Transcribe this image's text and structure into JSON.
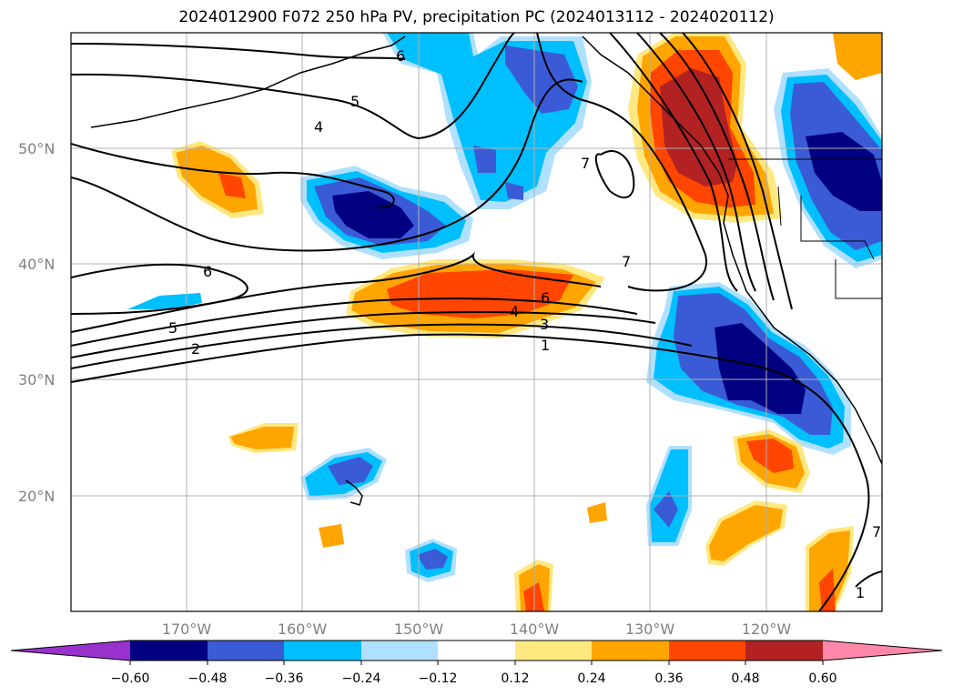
{
  "title": "2024012900 F072 250 hPa PV, precipitation PC (2024013112 - 2024020112)",
  "map": {
    "projection": "plate-carree",
    "lon_range": [
      180,
      110
    ],
    "lat_range": [
      10,
      60
    ],
    "grid": true,
    "lat_ticks": [
      {
        "label": "50°N"
      },
      {
        "label": "40°N"
      },
      {
        "label": "30°N"
      },
      {
        "label": "20°N"
      }
    ],
    "lon_ticks": [
      {
        "label": "170°W"
      },
      {
        "label": "160°W"
      },
      {
        "label": "150°W"
      },
      {
        "label": "140°W"
      },
      {
        "label": "130°W"
      },
      {
        "label": "120°W"
      }
    ],
    "pv_contour_labels": [
      "6",
      "5",
      "4",
      "7",
      "6",
      "5",
      "2",
      "7",
      "6",
      "4",
      "3",
      "1",
      "1",
      "7"
    ]
  },
  "colorbar": {
    "orientation": "horizontal",
    "extend": "both",
    "ticks": [
      "−0.60",
      "−0.48",
      "−0.36",
      "−0.24",
      "−0.12",
      "0.12",
      "0.24",
      "0.36",
      "0.48",
      "0.60"
    ],
    "colors": [
      "#9932cc",
      "#000080",
      "#3b5bd6",
      "#00bfff",
      "#b0e0ff",
      "#ffffff",
      "#ffe880",
      "#ffa500",
      "#ff4500",
      "#b22222",
      "#ff88aa"
    ]
  },
  "colors": {
    "neg_strong": "#000080",
    "neg_mid": "#3b5bd6",
    "neg_weak": "#00bfff",
    "neg_faint": "#b0e0ff",
    "pos_faint": "#ffe880",
    "pos_weak": "#ffa500",
    "pos_mid": "#ff4500",
    "pos_strong": "#b22222"
  }
}
